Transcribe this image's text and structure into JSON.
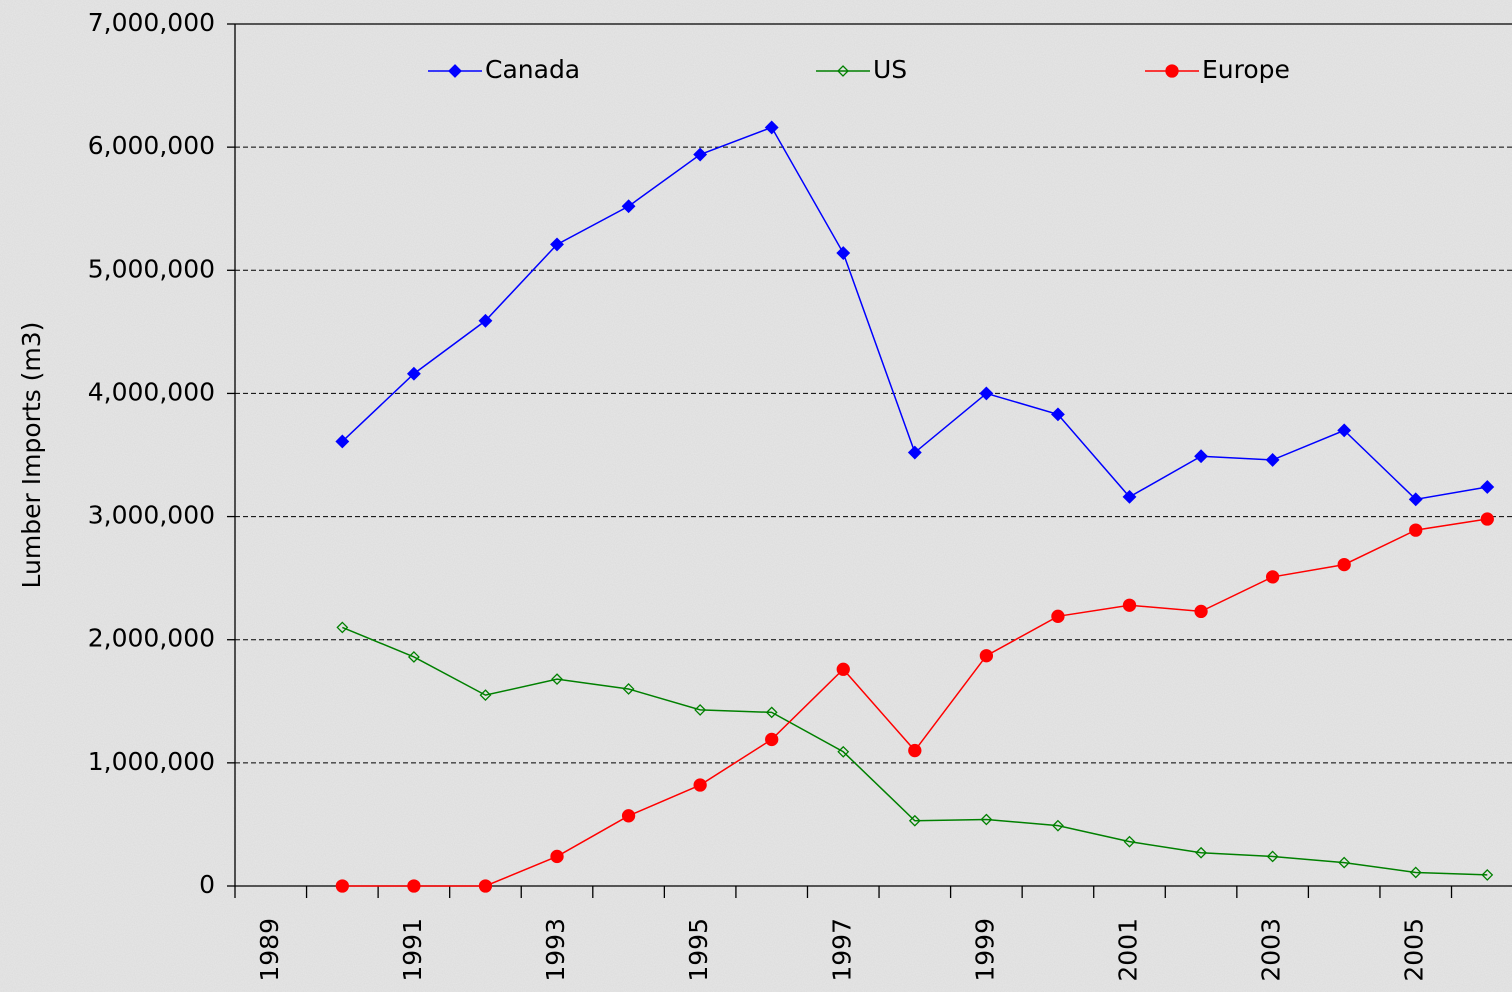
{
  "chart_data": {
    "type": "line",
    "y_label": "Lumber Imports (m3)",
    "categories": [
      "1989",
      null,
      "1991",
      null,
      "1993",
      null,
      "1995",
      null,
      "1997",
      null,
      "1999",
      null,
      "2001",
      null,
      "2003",
      null,
      "2005",
      null
    ],
    "series": [
      {
        "name": "Canada",
        "color": "#0000ff",
        "marker": "diamond",
        "filled": true,
        "values": [
          null,
          3610000,
          4160000,
          4590000,
          5210000,
          5520000,
          5940000,
          6160000,
          5140000,
          3520000,
          4000000,
          3830000,
          3160000,
          3490000,
          3460000,
          3700000,
          3140000,
          3240000
        ]
      },
      {
        "name": "US",
        "color": "#008000",
        "marker": "diamond",
        "filled": false,
        "values": [
          null,
          2100000,
          1860000,
          1550000,
          1680000,
          1600000,
          1430000,
          1410000,
          1090000,
          530000,
          540000,
          490000,
          360000,
          270000,
          240000,
          190000,
          110000,
          90000
        ]
      },
      {
        "name": "Europe",
        "color": "#ff0000",
        "marker": "circle",
        "filled": true,
        "values": [
          null,
          0,
          0,
          0,
          240000,
          570000,
          820000,
          1190000,
          1760000,
          1100000,
          1870000,
          2190000,
          2280000,
          2230000,
          2510000,
          2610000,
          2890000,
          2980000
        ]
      }
    ],
    "ylim": [
      0,
      7000000
    ],
    "yticks": [
      0,
      {
        "value": 1000000,
        "label": "1,000,000"
      },
      {
        "value": 2000000,
        "label": "2,000,000"
      },
      {
        "value": 3000000,
        "label": "3,000,000"
      },
      {
        "value": 4000000,
        "label": "4,000,000"
      },
      {
        "value": 5000000,
        "label": "5,000,000"
      },
      {
        "value": 6000000,
        "label": "6,000,000"
      },
      {
        "value": 7000000,
        "label": "7,000,000"
      }
    ],
    "grid": true,
    "legend": "top"
  }
}
